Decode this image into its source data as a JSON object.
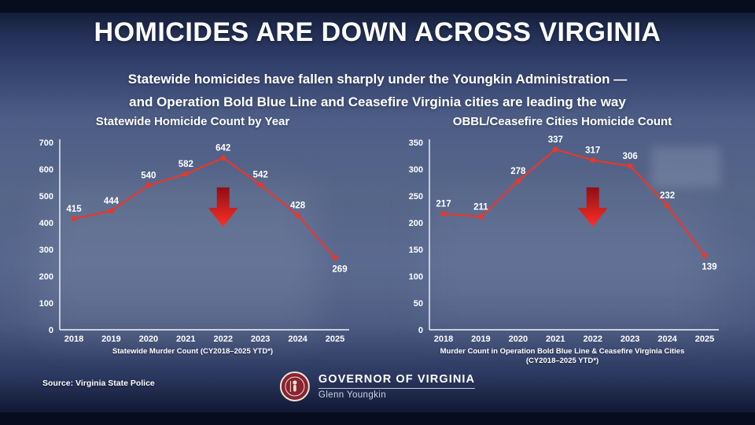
{
  "page": {
    "title": "HOMICIDES ARE DOWN ACROSS VIRGINIA",
    "subtitle_line1": "Statewide homicides have fallen sharply under the Youngkin Administration —",
    "subtitle_line2": "and Operation Bold Blue Line and Ceasefire Virginia cities are leading the way",
    "source": "Source: Virginia State Police"
  },
  "footer": {
    "org": "GOVERNOR OF VIRGINIA",
    "name": "Glenn Youngkin",
    "seal_icon": "virginia-seal"
  },
  "colors": {
    "line": "#e8372c",
    "arrow_dark": "#8f0e13",
    "arrow_bright": "#ff2f27",
    "text": "#ffffff",
    "background_top": "#0b1124",
    "background_mid": "#566689"
  },
  "icons": {
    "trend_arrow": "down-arrow",
    "footer_seal": "virginia-seal"
  },
  "chart_data": [
    {
      "type": "line",
      "title": "Statewide Homicide Count by Year",
      "categories": [
        "2018",
        "2019",
        "2020",
        "2021",
        "2022",
        "2023",
        "2024",
        "2025"
      ],
      "values": [
        415,
        444,
        540,
        582,
        642,
        542,
        428,
        269
      ],
      "ylim": [
        0,
        700
      ],
      "ytick_step": 100,
      "grid": false,
      "legend": "none",
      "caption": "Statewide Murder Count (CY2018–2025 YTD*)",
      "caption2": "",
      "arrow_at_index": 4
    },
    {
      "type": "line",
      "title": "OBBL/Ceasefire Cities Homicide Count",
      "categories": [
        "2018",
        "2019",
        "2020",
        "2021",
        "2022",
        "2023",
        "2024",
        "2025"
      ],
      "values": [
        217,
        211,
        278,
        337,
        317,
        306,
        232,
        139
      ],
      "ylim": [
        0,
        350
      ],
      "ytick_step": 50,
      "grid": false,
      "legend": "none",
      "caption": "Murder Count in Operation Bold Blue Line & Ceasefire Virginia Cities",
      "caption2": "(CY2018–2025 YTD*)",
      "arrow_at_index": 4
    }
  ]
}
